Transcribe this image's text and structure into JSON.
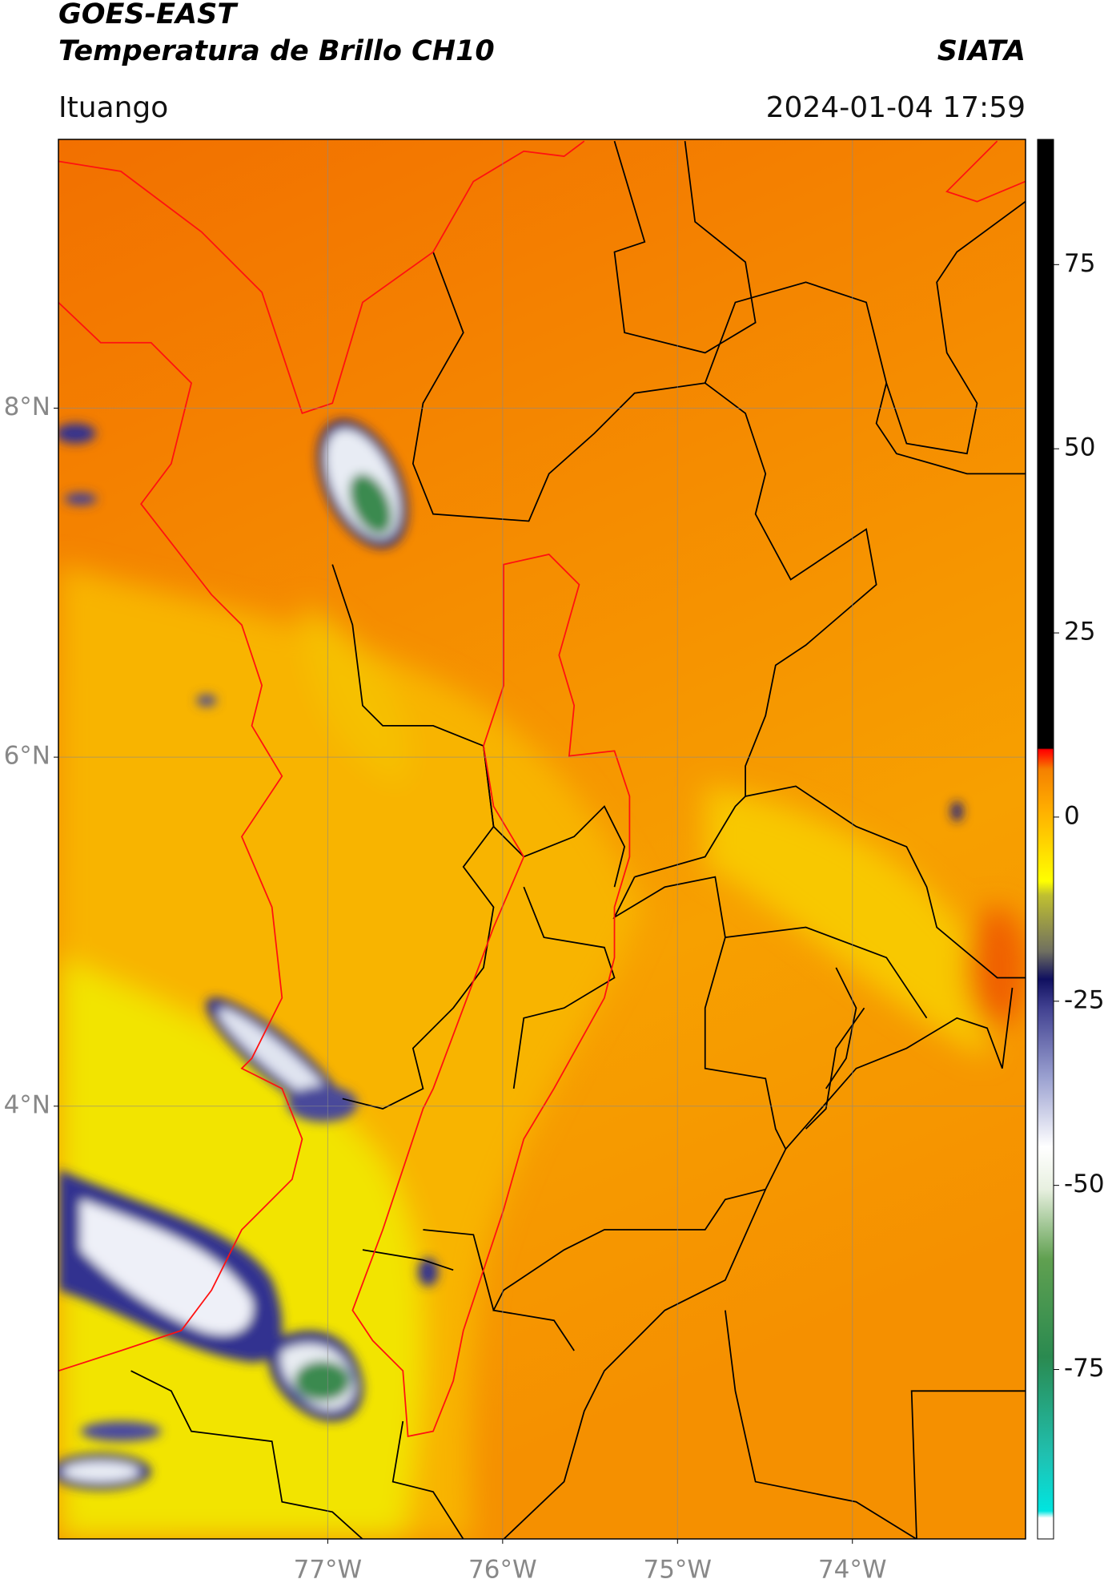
{
  "chart_data": {
    "type": "map",
    "title": "GOES-EAST",
    "subtitle": "Temperatura de Brillo CH10",
    "source": "SIATA",
    "region": "Ituango",
    "datetime": "2024-01-04 17:59",
    "xlim": [
      -78.54,
      -73.01
    ],
    "ylim": [
      1.52,
      9.54
    ],
    "xticks": [
      {
        "value": -77,
        "label": "77°W"
      },
      {
        "value": -76,
        "label": "76°W"
      },
      {
        "value": -75,
        "label": "75°W"
      },
      {
        "value": -74,
        "label": "74°W"
      }
    ],
    "yticks": [
      {
        "value": 8,
        "label": "8°N"
      },
      {
        "value": 6,
        "label": "6°N"
      },
      {
        "value": 4,
        "label": "4°N"
      }
    ],
    "grid": true,
    "colorbar": {
      "lim": [
        -98,
        92
      ],
      "ticks": [
        75,
        50,
        25,
        0,
        -25,
        -50,
        -75
      ]
    }
  }
}
